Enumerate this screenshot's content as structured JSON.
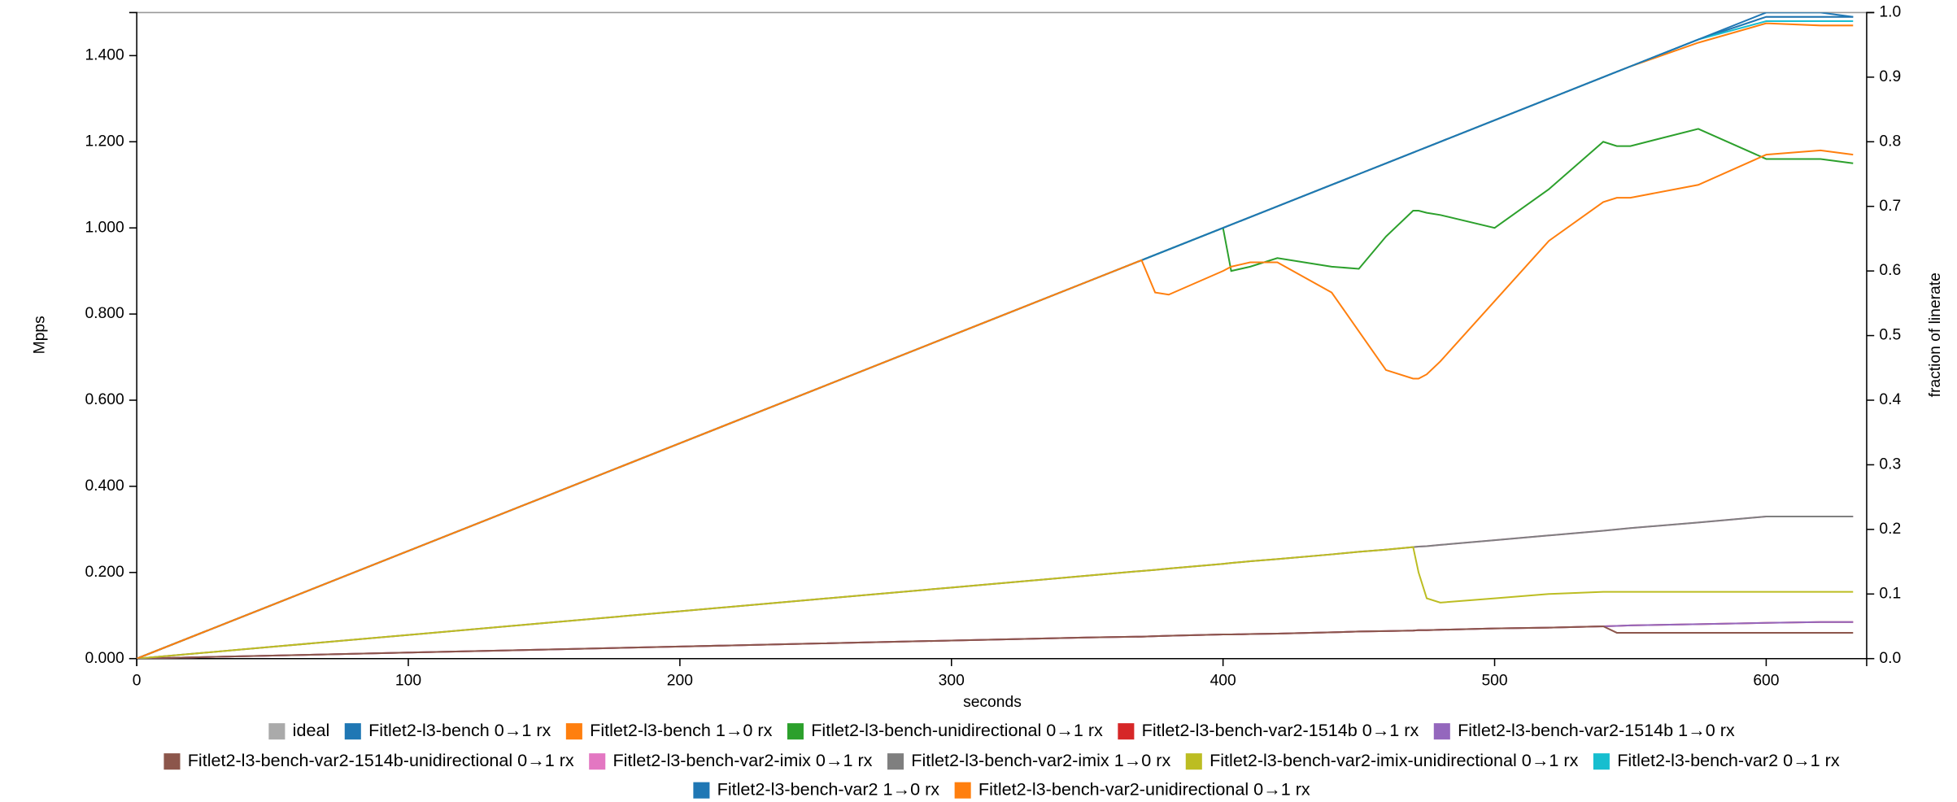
{
  "chart_data": {
    "type": "line",
    "xlabel": "seconds",
    "ylabel": "Mpps",
    "y2label": "fraction of linerate",
    "xlim": [
      0,
      637
    ],
    "ylim": [
      0,
      1.5
    ],
    "y2lim": [
      0,
      1
    ],
    "xticks": [
      0,
      100,
      200,
      300,
      400,
      500,
      600
    ],
    "yticks": [
      {
        "value": 0,
        "label": "0.000"
      },
      {
        "value": 0.2,
        "label": "0.200"
      },
      {
        "value": 0.4,
        "label": "0.400"
      },
      {
        "value": 0.6,
        "label": "0.600"
      },
      {
        "value": 0.8,
        "label": "0.800"
      },
      {
        "value": 1.0,
        "label": "1.000"
      },
      {
        "value": 1.2,
        "label": "1.200"
      },
      {
        "value": 1.4,
        "label": "1.400"
      }
    ],
    "y2ticks": [
      {
        "value": 0,
        "label": "0.0"
      },
      0.1,
      0.2,
      0.3,
      0.4,
      0.5,
      0.6,
      0.7,
      0.8,
      0.9,
      {
        "value": 1,
        "label": "1.0"
      }
    ],
    "x": [
      0,
      50,
      100,
      150,
      200,
      250,
      300,
      350,
      370,
      375,
      380,
      400,
      403,
      410,
      420,
      440,
      450,
      460,
      470,
      472,
      475,
      480,
      500,
      520,
      540,
      545,
      550,
      575,
      600,
      620,
      632
    ],
    "series": [
      {
        "name": "ideal",
        "color": "#aaaaaa",
        "values": [
          0,
          0.125,
          0.25,
          0.375,
          0.5,
          0.625,
          0.75,
          0.875,
          0.925,
          0.9375,
          0.95,
          1.0,
          1.0075,
          1.025,
          1.05,
          1.1,
          1.125,
          1.15,
          1.175,
          1.18,
          1.1875,
          1.2,
          1.25,
          1.3,
          1.35,
          1.3625,
          1.375,
          1.4375,
          1.49,
          1.49,
          1.49
        ]
      },
      {
        "name": "Fitlet2-l3-bench 0→1 rx",
        "color": "#1f77b4",
        "values": [
          0,
          0.125,
          0.25,
          0.375,
          0.5,
          0.625,
          0.75,
          0.875,
          0.925,
          0.9375,
          0.95,
          1.0,
          1.0075,
          1.025,
          1.05,
          1.1,
          1.125,
          1.15,
          1.175,
          1.18,
          1.1875,
          1.2,
          1.25,
          1.3,
          1.35,
          1.3625,
          1.375,
          1.4375,
          1.49,
          1.49,
          1.49
        ]
      },
      {
        "name": "Fitlet2-l3-bench 1→0 rx",
        "color": "#ff7f0e",
        "values": [
          0,
          0.125,
          0.25,
          0.375,
          0.5,
          0.625,
          0.75,
          0.875,
          0.925,
          0.9375,
          0.95,
          1.0,
          1.0075,
          1.025,
          1.05,
          1.1,
          1.125,
          1.15,
          1.175,
          1.18,
          1.1875,
          1.2,
          1.25,
          1.3,
          1.35,
          1.3625,
          1.375,
          1.43,
          1.475,
          1.47,
          1.47
        ]
      },
      {
        "name": "Fitlet2-l3-bench-unidirectional 0→1 rx",
        "color": "#2ca02c",
        "values": [
          0,
          0.125,
          0.25,
          0.375,
          0.5,
          0.625,
          0.75,
          0.875,
          0.925,
          0.9375,
          0.95,
          1.0,
          0.9,
          0.91,
          0.93,
          0.91,
          0.905,
          0.98,
          1.04,
          1.04,
          1.035,
          1.03,
          1.0,
          1.09,
          1.2,
          1.19,
          1.19,
          1.23,
          1.16,
          1.16,
          1.15
        ]
      },
      {
        "name": "Fitlet2-l3-bench-var2-1514b 0→1 rx",
        "color": "#d62728",
        "values": [
          0,
          0.007,
          0.014,
          0.021,
          0.028,
          0.035,
          0.042,
          0.049,
          0.051,
          0.052,
          0.053,
          0.056,
          0.056,
          0.057,
          0.058,
          0.061,
          0.063,
          0.064,
          0.065,
          0.066,
          0.066,
          0.067,
          0.07,
          0.072,
          0.075,
          0.076,
          0.077,
          0.08,
          0.083,
          0.085,
          0.085
        ]
      },
      {
        "name": "Fitlet2-l3-bench-var2-1514b 1→0 rx",
        "color": "#9467bd",
        "values": [
          0,
          0.007,
          0.014,
          0.021,
          0.028,
          0.035,
          0.042,
          0.049,
          0.051,
          0.052,
          0.053,
          0.056,
          0.056,
          0.057,
          0.058,
          0.061,
          0.063,
          0.064,
          0.065,
          0.066,
          0.066,
          0.067,
          0.07,
          0.072,
          0.075,
          0.076,
          0.077,
          0.08,
          0.083,
          0.085,
          0.085
        ]
      },
      {
        "name": "Fitlet2-l3-bench-var2-1514b-unidirectional 0→1 rx",
        "color": "#8c564b",
        "values": [
          0,
          0.007,
          0.014,
          0.021,
          0.028,
          0.035,
          0.042,
          0.049,
          0.051,
          0.052,
          0.053,
          0.056,
          0.056,
          0.057,
          0.058,
          0.061,
          0.063,
          0.064,
          0.065,
          0.066,
          0.066,
          0.067,
          0.07,
          0.072,
          0.075,
          0.06,
          0.06,
          0.06,
          0.06,
          0.06,
          0.06
        ]
      },
      {
        "name": "Fitlet2-l3-bench-var2-imix 0→1 rx",
        "color": "#e377c2",
        "values": [
          0,
          0.0275,
          0.055,
          0.0825,
          0.11,
          0.1375,
          0.165,
          0.1925,
          0.2035,
          0.206,
          0.209,
          0.22,
          0.222,
          0.226,
          0.231,
          0.242,
          0.248,
          0.253,
          0.259,
          0.26,
          0.261,
          0.264,
          0.275,
          0.286,
          0.297,
          0.3,
          0.303,
          0.316,
          0.33,
          0.33,
          0.33
        ]
      },
      {
        "name": "Fitlet2-l3-bench-var2-imix 1→0 rx",
        "color": "#7f7f7f",
        "values": [
          0,
          0.0275,
          0.055,
          0.0825,
          0.11,
          0.1375,
          0.165,
          0.1925,
          0.2035,
          0.206,
          0.209,
          0.22,
          0.222,
          0.226,
          0.231,
          0.242,
          0.248,
          0.253,
          0.259,
          0.26,
          0.261,
          0.264,
          0.275,
          0.286,
          0.297,
          0.3,
          0.303,
          0.316,
          0.33,
          0.33,
          0.33
        ]
      },
      {
        "name": "Fitlet2-l3-bench-var2-imix-unidirectional 0→1 rx",
        "color": "#bcbd22",
        "values": [
          0,
          0.0275,
          0.055,
          0.0825,
          0.11,
          0.1375,
          0.165,
          0.1925,
          0.2035,
          0.206,
          0.209,
          0.22,
          0.222,
          0.226,
          0.231,
          0.242,
          0.248,
          0.253,
          0.259,
          0.2,
          0.14,
          0.13,
          0.14,
          0.15,
          0.155,
          0.155,
          0.155,
          0.155,
          0.155,
          0.155,
          0.155
        ]
      },
      {
        "name": "Fitlet2-l3-bench-var2 0→1 rx",
        "color": "#17becf",
        "values": [
          0,
          0.125,
          0.25,
          0.375,
          0.5,
          0.625,
          0.75,
          0.875,
          0.925,
          0.9375,
          0.95,
          1.0,
          1.0075,
          1.025,
          1.05,
          1.1,
          1.125,
          1.15,
          1.175,
          1.18,
          1.1875,
          1.2,
          1.25,
          1.3,
          1.35,
          1.3625,
          1.375,
          1.4375,
          1.48,
          1.48,
          1.48
        ]
      },
      {
        "name": "Fitlet2-l3-bench-var2 1→0 rx",
        "color": "#1f77b4",
        "values": [
          0,
          0.125,
          0.25,
          0.375,
          0.5,
          0.625,
          0.75,
          0.875,
          0.925,
          0.9375,
          0.95,
          1.0,
          1.0075,
          1.025,
          1.05,
          1.1,
          1.125,
          1.15,
          1.175,
          1.18,
          1.1875,
          1.2,
          1.25,
          1.3,
          1.35,
          1.3625,
          1.375,
          1.4375,
          1.5,
          1.5,
          1.49
        ]
      },
      {
        "name": "Fitlet2-l3-bench-var2-unidirectional 0→1 rx",
        "color": "#ff7f0e",
        "values": [
          0,
          0.125,
          0.25,
          0.375,
          0.5,
          0.625,
          0.75,
          0.875,
          0.925,
          0.85,
          0.845,
          0.9,
          0.91,
          0.92,
          0.92,
          0.85,
          0.76,
          0.67,
          0.65,
          0.65,
          0.66,
          0.69,
          0.83,
          0.97,
          1.06,
          1.07,
          1.07,
          1.1,
          1.17,
          1.18,
          1.17
        ]
      }
    ]
  }
}
